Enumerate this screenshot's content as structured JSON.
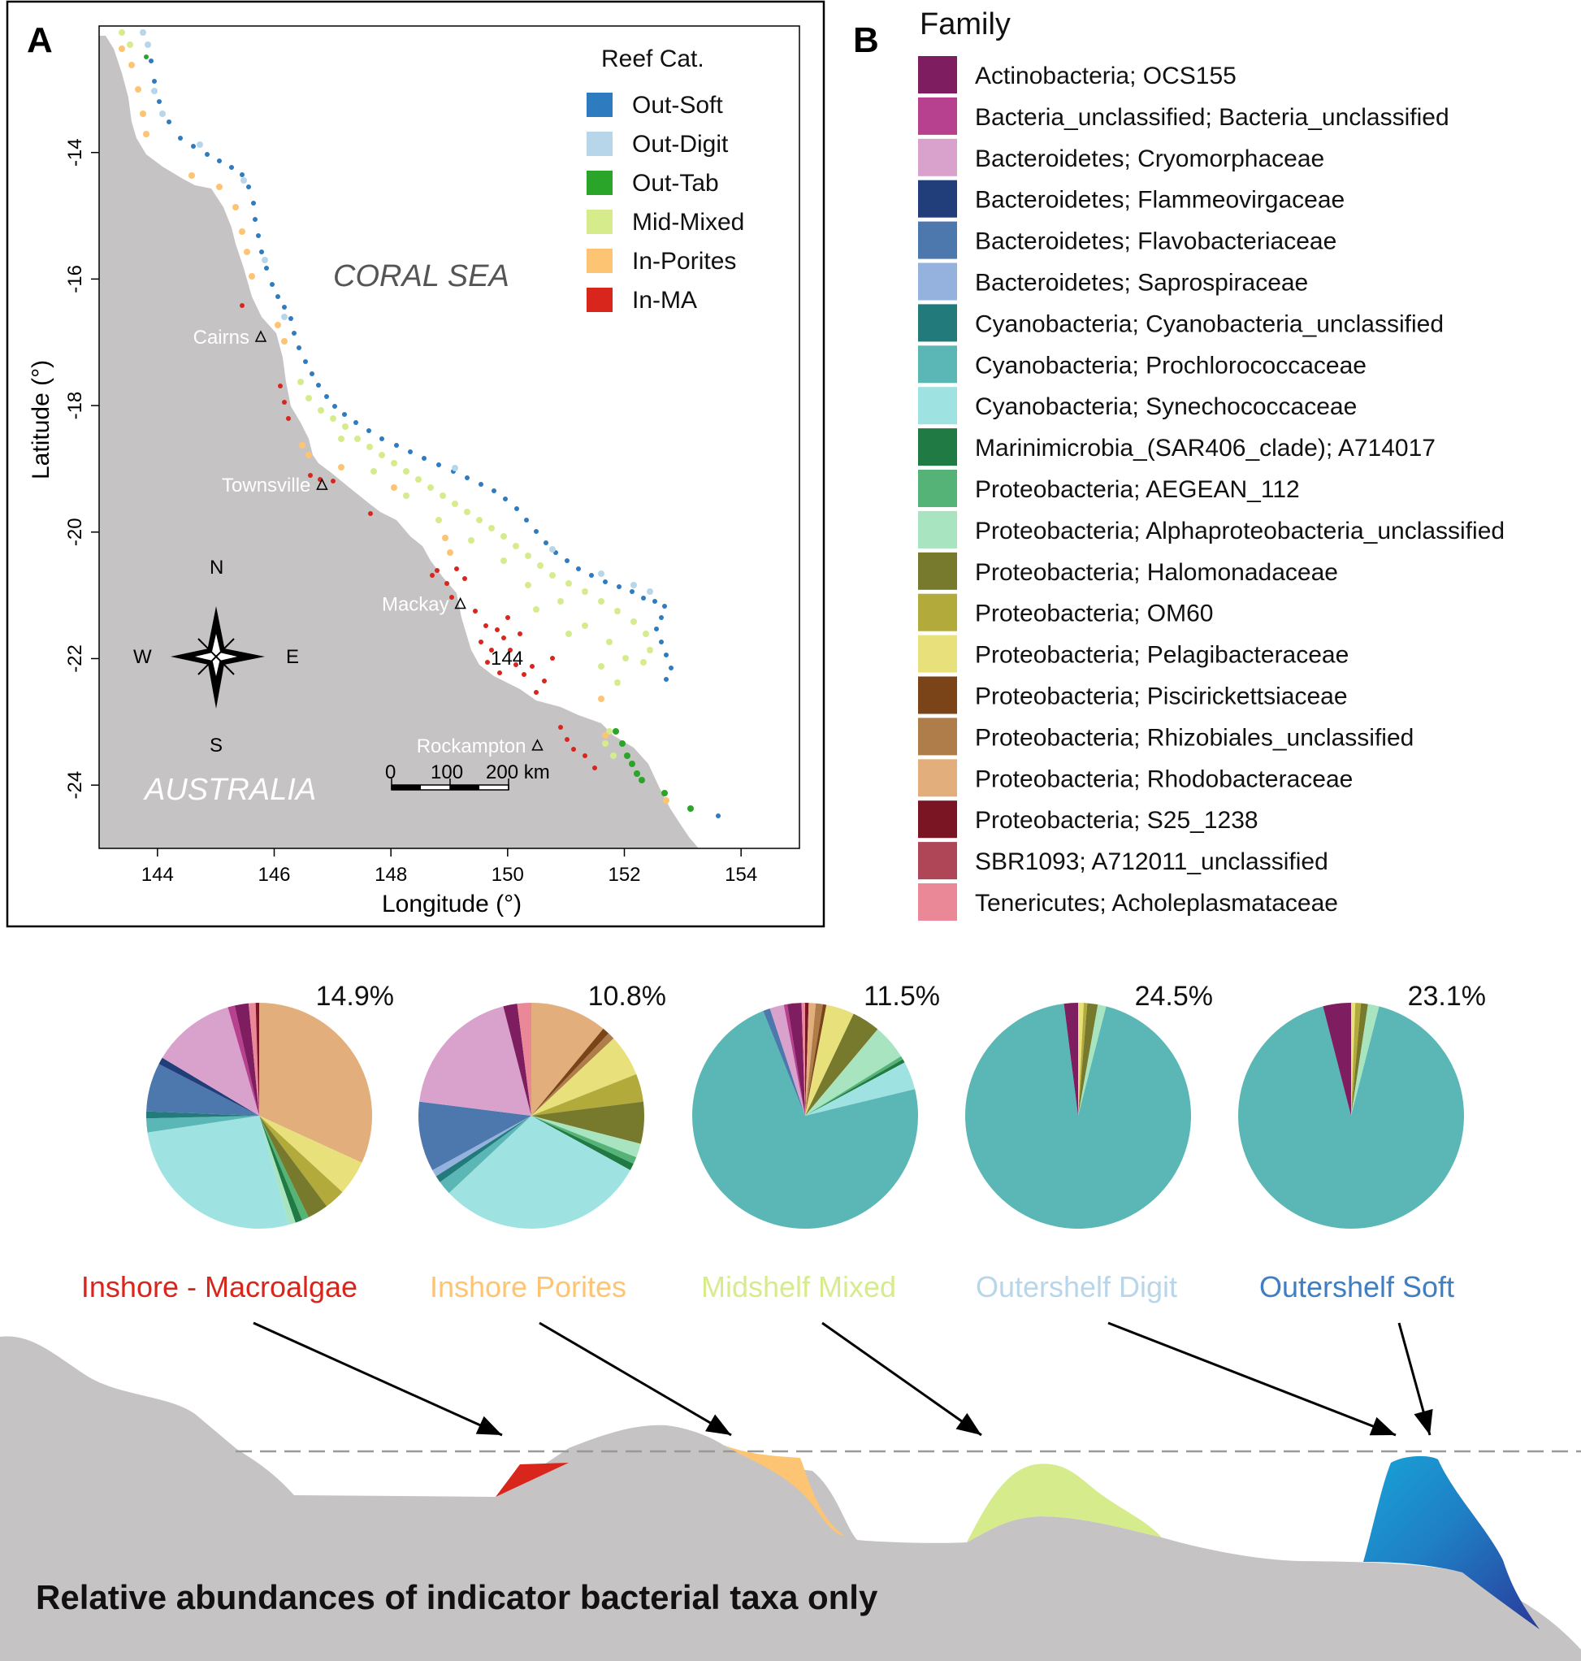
{
  "panel_a": {
    "letter": "A",
    "sea_label": "CORAL SEA",
    "land_label": "AUSTRALIA",
    "legend_title": "Reef Cat.",
    "legend": [
      {
        "label": "Out-Soft",
        "color": "#2f7bbf"
      },
      {
        "label": "Out-Digit",
        "color": "#b8d6ea"
      },
      {
        "label": "Out-Tab",
        "color": "#2aa52a"
      },
      {
        "label": "Mid-Mixed",
        "color": "#d6ec8c"
      },
      {
        "label": "In-Porites",
        "color": "#fdc473"
      },
      {
        "label": "In-MA",
        "color": "#d9261c"
      }
    ],
    "towns": [
      {
        "name": "Cairns",
        "lon": 145.77,
        "lat": -16.92
      },
      {
        "name": "Townsville",
        "lon": 146.82,
        "lat": -19.26
      },
      {
        "name": "Mackay",
        "lon": 149.19,
        "lat": -21.14
      },
      {
        "name": "Rockampton",
        "lon": 150.51,
        "lat": -23.38
      }
    ],
    "marker_label": "144",
    "compass": {
      "n": "N",
      "s": "S",
      "e": "E",
      "w": "W"
    },
    "scale_bar": {
      "labels": [
        "0",
        "100",
        "200 km"
      ]
    },
    "x_axis": {
      "title": "Longitude (°)",
      "ticks": [
        144,
        146,
        148,
        150,
        152,
        154
      ],
      "range": [
        143,
        155
      ]
    },
    "y_axis": {
      "title": "Latitude (°)",
      "ticks": [
        -14,
        -16,
        -18,
        -20,
        -22,
        -24
      ],
      "range": [
        -25,
        -12
      ]
    }
  },
  "panel_b": {
    "letter": "B",
    "title": "Family",
    "families": [
      {
        "label": "Actinobacteria; OCS155",
        "color": "#7e1d5f"
      },
      {
        "label": "Bacteria_unclassified; Bacteria_unclassified",
        "color": "#b8418f"
      },
      {
        "label": "Bacteroidetes; Cryomorphaceae",
        "color": "#d9a2cc"
      },
      {
        "label": "Bacteroidetes; Flammeovirgaceae",
        "color": "#213d7a"
      },
      {
        "label": "Bacteroidetes; Flavobacteriaceae",
        "color": "#4c78ad"
      },
      {
        "label": "Bacteroidetes; Saprospiraceae",
        "color": "#95b2df"
      },
      {
        "label": "Cyanobacteria; Cyanobacteria_unclassified",
        "color": "#227a7a"
      },
      {
        "label": "Cyanobacteria; Prochlorococcaceae",
        "color": "#5bb7b6"
      },
      {
        "label": "Cyanobacteria; Synechococcaceae",
        "color": "#9fe2e2"
      },
      {
        "label": "Marinimicrobia_(SAR406_clade); A714017",
        "color": "#207a43"
      },
      {
        "label": "Proteobacteria; AEGEAN_112",
        "color": "#56b377"
      },
      {
        "label": "Proteobacteria; Alphaproteobacteria_unclassified",
        "color": "#a8e4c0"
      },
      {
        "label": "Proteobacteria; Halomonadaceae",
        "color": "#777a2c"
      },
      {
        "label": "Proteobacteria; OM60",
        "color": "#b2aa3a"
      },
      {
        "label": "Proteobacteria; Pelagibacteraceae",
        "color": "#e8e07a"
      },
      {
        "label": "Proteobacteria; Piscirickettsiaceae",
        "color": "#7a4318"
      },
      {
        "label": "Proteobacteria; Rhizobiales_unclassified",
        "color": "#ae7d4a"
      },
      {
        "label": "Proteobacteria; Rhodobacteraceae",
        "color": "#e2af7c"
      },
      {
        "label": "Proteobacteria; S25_1238",
        "color": "#7a1624"
      },
      {
        "label": "SBR1093; A712011_unclassified",
        "color": "#af4658"
      },
      {
        "label": "Tenericutes; Acholeplasmataceae",
        "color": "#ea8898"
      }
    ]
  },
  "chart_data": {
    "type": "pie",
    "title": "Relative abundances of indicator bacterial taxa only",
    "pies": [
      {
        "name": "Inshore - Macroalgae",
        "percent": "14.9%",
        "label_color": "#d9261c",
        "slices": [
          {
            "family": "Proteobacteria; Rhodobacteraceae",
            "value": 32
          },
          {
            "family": "Proteobacteria; Pelagibacteraceae",
            "value": 5
          },
          {
            "family": "Proteobacteria; OM60",
            "value": 3
          },
          {
            "family": "Proteobacteria; Halomonadaceae",
            "value": 3
          },
          {
            "family": "Proteobacteria; AEGEAN_112",
            "value": 1
          },
          {
            "family": "Marinimicrobia_(SAR406_clade); A714017",
            "value": 1
          },
          {
            "family": "Proteobacteria; Alphaproteobacteria_unclassified",
            "value": 1
          },
          {
            "family": "Cyanobacteria; Synechococcaceae",
            "value": 27
          },
          {
            "family": "Cyanobacteria; Prochlorococcaceae",
            "value": 2
          },
          {
            "family": "Cyanobacteria; Cyanobacteria_unclassified",
            "value": 1
          },
          {
            "family": "Bacteroidetes; Flavobacteriaceae",
            "value": 7
          },
          {
            "family": "Bacteroidetes; Flammeovirgaceae",
            "value": 1
          },
          {
            "family": "Bacteroidetes; Cryomorphaceae",
            "value": 12
          },
          {
            "family": "Bacteria_unclassified; Bacteria_unclassified",
            "value": 1
          },
          {
            "family": "Actinobacteria; OCS155",
            "value": 2
          },
          {
            "family": "Tenericutes; Acholeplasmataceae",
            "value": 1
          },
          {
            "family": "Proteobacteria; S25_1238",
            "value": 0.5
          }
        ]
      },
      {
        "name": "Inshore Porites",
        "percent": "10.8%",
        "label_color": "#fdc473",
        "slices": [
          {
            "family": "Proteobacteria; Rhodobacteraceae",
            "value": 11
          },
          {
            "family": "Proteobacteria; Piscirickettsiaceae",
            "value": 1
          },
          {
            "family": "Proteobacteria; Rhizobiales_unclassified",
            "value": 1
          },
          {
            "family": "Proteobacteria; Pelagibacteraceae",
            "value": 6
          },
          {
            "family": "Proteobacteria; OM60",
            "value": 4
          },
          {
            "family": "Proteobacteria; Halomonadaceae",
            "value": 6
          },
          {
            "family": "Proteobacteria; Alphaproteobacteria_unclassified",
            "value": 2
          },
          {
            "family": "Proteobacteria; AEGEAN_112",
            "value": 1
          },
          {
            "family": "Marinimicrobia_(SAR406_clade); A714017",
            "value": 1
          },
          {
            "family": "Cyanobacteria; Synechococcaceae",
            "value": 30
          },
          {
            "family": "Cyanobacteria; Prochlorococcaceae",
            "value": 2
          },
          {
            "family": "Cyanobacteria; Cyanobacteria_unclassified",
            "value": 1
          },
          {
            "family": "Bacteroidetes; Saprospiraceae",
            "value": 1
          },
          {
            "family": "Bacteroidetes; Flavobacteriaceae",
            "value": 10
          },
          {
            "family": "Bacteroidetes; Cryomorphaceae",
            "value": 19
          },
          {
            "family": "Actinobacteria; OCS155",
            "value": 2
          },
          {
            "family": "Tenericutes; Acholeplasmataceae",
            "value": 2
          }
        ]
      },
      {
        "name": "Midshelf Mixed",
        "percent": "11.5%",
        "label_color": "#d6ec8c",
        "slices": [
          {
            "family": "Proteobacteria; S25_1238",
            "value": 0.5
          },
          {
            "family": "Proteobacteria; Rhodobacteraceae",
            "value": 1
          },
          {
            "family": "Proteobacteria; Rhizobiales_unclassified",
            "value": 1
          },
          {
            "family": "Proteobacteria; Piscirickettsiaceae",
            "value": 0.5
          },
          {
            "family": "Proteobacteria; Pelagibacteraceae",
            "value": 4
          },
          {
            "family": "Proteobacteria; Halomonadaceae",
            "value": 4
          },
          {
            "family": "Proteobacteria; Alphaproteobacteria_unclassified",
            "value": 5
          },
          {
            "family": "Proteobacteria; AEGEAN_112",
            "value": 0.5
          },
          {
            "family": "Marinimicrobia_(SAR406_clade); A714017",
            "value": 0.5
          },
          {
            "family": "Cyanobacteria; Synechococcaceae",
            "value": 4
          },
          {
            "family": "Cyanobacteria; Prochlorococcaceae",
            "value": 72
          },
          {
            "family": "Bacteroidetes; Flavobacteriaceae",
            "value": 1
          },
          {
            "family": "Bacteroidetes; Cryomorphaceae",
            "value": 2
          },
          {
            "family": "Bacteria_unclassified; Bacteria_unclassified",
            "value": 0.5
          },
          {
            "family": "Actinobacteria; OCS155",
            "value": 2
          },
          {
            "family": "Tenericutes; Acholeplasmataceae",
            "value": 0.5
          }
        ]
      },
      {
        "name": "Outershelf Digit",
        "percent": "24.5%",
        "label_color": "#b8d6ea",
        "slices": [
          {
            "family": "Proteobacteria; Pelagibacteraceae",
            "value": 0.8
          },
          {
            "family": "Proteobacteria; OM60",
            "value": 0.5
          },
          {
            "family": "Proteobacteria; Halomonadaceae",
            "value": 1.5
          },
          {
            "family": "Proteobacteria; Alphaproteobacteria_unclassified",
            "value": 1.2
          },
          {
            "family": "Cyanobacteria; Prochlorococcaceae",
            "value": 94
          },
          {
            "family": "Actinobacteria; OCS155",
            "value": 2
          }
        ]
      },
      {
        "name": "Outershelf Soft",
        "percent": "23.1%",
        "label_color": "#3f7ec2",
        "slices": [
          {
            "family": "Proteobacteria; Pelagibacteraceae",
            "value": 0.6
          },
          {
            "family": "Proteobacteria; OM60",
            "value": 0.8
          },
          {
            "family": "Proteobacteria; Halomonadaceae",
            "value": 1
          },
          {
            "family": "Proteobacteria; Alphaproteobacteria_unclassified",
            "value": 1.6
          },
          {
            "family": "Cyanobacteria; Prochlorococcaceae",
            "value": 92
          },
          {
            "family": "Actinobacteria; OCS155",
            "value": 4
          }
        ]
      }
    ]
  },
  "profile": {
    "caption": "Relative abundances of indicator bacterial taxa only"
  }
}
